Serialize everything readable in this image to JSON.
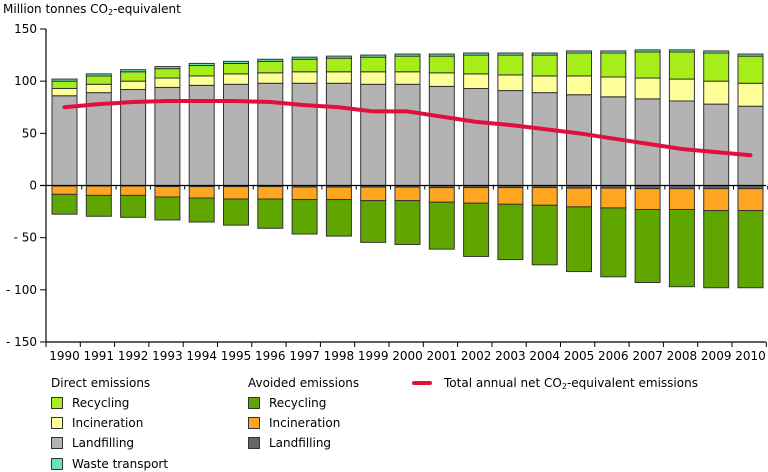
{
  "chart_data": {
    "type": "bar",
    "stacked": true,
    "title": "",
    "ylabel": "Million tonnes CO2-equivalent",
    "ylabel_parts": {
      "pre": "Million tonnes CO",
      "sub": "2",
      "post": "-equivalent"
    },
    "xlabel": "",
    "ylim": [
      -150,
      150
    ],
    "yticks": [
      150,
      100,
      50,
      0,
      -50,
      -100,
      -150
    ],
    "ytick_labels": [
      "150",
      "100",
      "50",
      "0",
      "- 50",
      "- 100",
      "- 150"
    ],
    "grid": false,
    "categories": [
      "1990",
      "1991",
      "1992",
      "1993",
      "1994",
      "1995",
      "1996",
      "1997",
      "1998",
      "1999",
      "2000",
      "2001",
      "2002",
      "2003",
      "2004",
      "2005",
      "2006",
      "2007",
      "2008",
      "2009",
      "2010"
    ],
    "series": [
      {
        "name": "Direct emissions: Landfilling",
        "group": "direct",
        "color": "#b3b3b3",
        "values": [
          86,
          89,
          92,
          94,
          96,
          97,
          98,
          98,
          98,
          97,
          97,
          95,
          93,
          91,
          89,
          87,
          85,
          83,
          81,
          78,
          76
        ]
      },
      {
        "name": "Direct emissions: Incineration",
        "group": "direct",
        "color": "#ffff99",
        "values": [
          7,
          8,
          8,
          9,
          9,
          10,
          10,
          11,
          11,
          12,
          12,
          13,
          14,
          15,
          16,
          18,
          19,
          20,
          21,
          22,
          22
        ]
      },
      {
        "name": "Direct emissions: Recycling",
        "group": "direct",
        "color": "#a6ed1a",
        "values": [
          7,
          8,
          9,
          9,
          10,
          10,
          11,
          12,
          13,
          14,
          15,
          16,
          18,
          19,
          20,
          22,
          23,
          25,
          26,
          27,
          26
        ]
      },
      {
        "name": "Direct emissions: Waste transport",
        "group": "direct",
        "color": "#66e6b3",
        "values": [
          2,
          2,
          2,
          2,
          2,
          2,
          2,
          2,
          2,
          2,
          2,
          2,
          2,
          2,
          2,
          2,
          2,
          2,
          2,
          2,
          2
        ]
      },
      {
        "name": "Avoided emissions: Landfilling",
        "group": "avoided",
        "color": "#666666",
        "values": [
          -0.5,
          -0.5,
          -0.5,
          -1,
          -1,
          -1,
          -1,
          -1.5,
          -1.5,
          -1.5,
          -1.5,
          -2,
          -2,
          -2,
          -2,
          -2.5,
          -2.5,
          -3,
          -3,
          -3,
          -3
        ]
      },
      {
        "name": "Avoided emissions: Incineration",
        "group": "avoided",
        "color": "#ffa51f",
        "values": [
          -8,
          -9,
          -9,
          -10,
          -11,
          -12,
          -12,
          -12,
          -12,
          -13,
          -13,
          -14,
          -15,
          -16,
          -17,
          -18,
          -19,
          -20,
          -20,
          -21,
          -21
        ]
      },
      {
        "name": "Avoided emissions: Recycling",
        "group": "avoided",
        "color": "#5fa700",
        "values": [
          -19,
          -20,
          -21,
          -22,
          -23,
          -25,
          -28,
          -33,
          -35,
          -40,
          -42,
          -45,
          -51,
          -53,
          -57,
          -62,
          -66,
          -70,
          -74,
          -74,
          -74
        ]
      }
    ],
    "line_series": {
      "name": "Total annual net CO2-equivalent emissions",
      "color": "#e0103e",
      "values": [
        75,
        78,
        80,
        81,
        81,
        81,
        80,
        77,
        75,
        71,
        71,
        66,
        61,
        58,
        54,
        50,
        45,
        40,
        35,
        32,
        29
      ]
    },
    "legend_placement": "bottom"
  },
  "legend": {
    "direct_heading": "Direct emissions",
    "avoided_heading": "Avoided emissions",
    "direct_items": [
      {
        "label": "Recycling",
        "color": "#a6ed1a"
      },
      {
        "label": "Incineration",
        "color": "#ffff99"
      },
      {
        "label": "Landfilling",
        "color": "#b3b3b3"
      },
      {
        "label": "Waste transport",
        "color": "#66e6b3"
      }
    ],
    "avoided_items": [
      {
        "label": "Recycling",
        "color": "#5fa700"
      },
      {
        "label": "Incineration",
        "color": "#ffa51f"
      },
      {
        "label": "Landfilling",
        "color": "#666666"
      }
    ],
    "line_label_pre": "Total annual net CO",
    "line_label_sub": "2",
    "line_label_post": "-equivalent emissions"
  }
}
